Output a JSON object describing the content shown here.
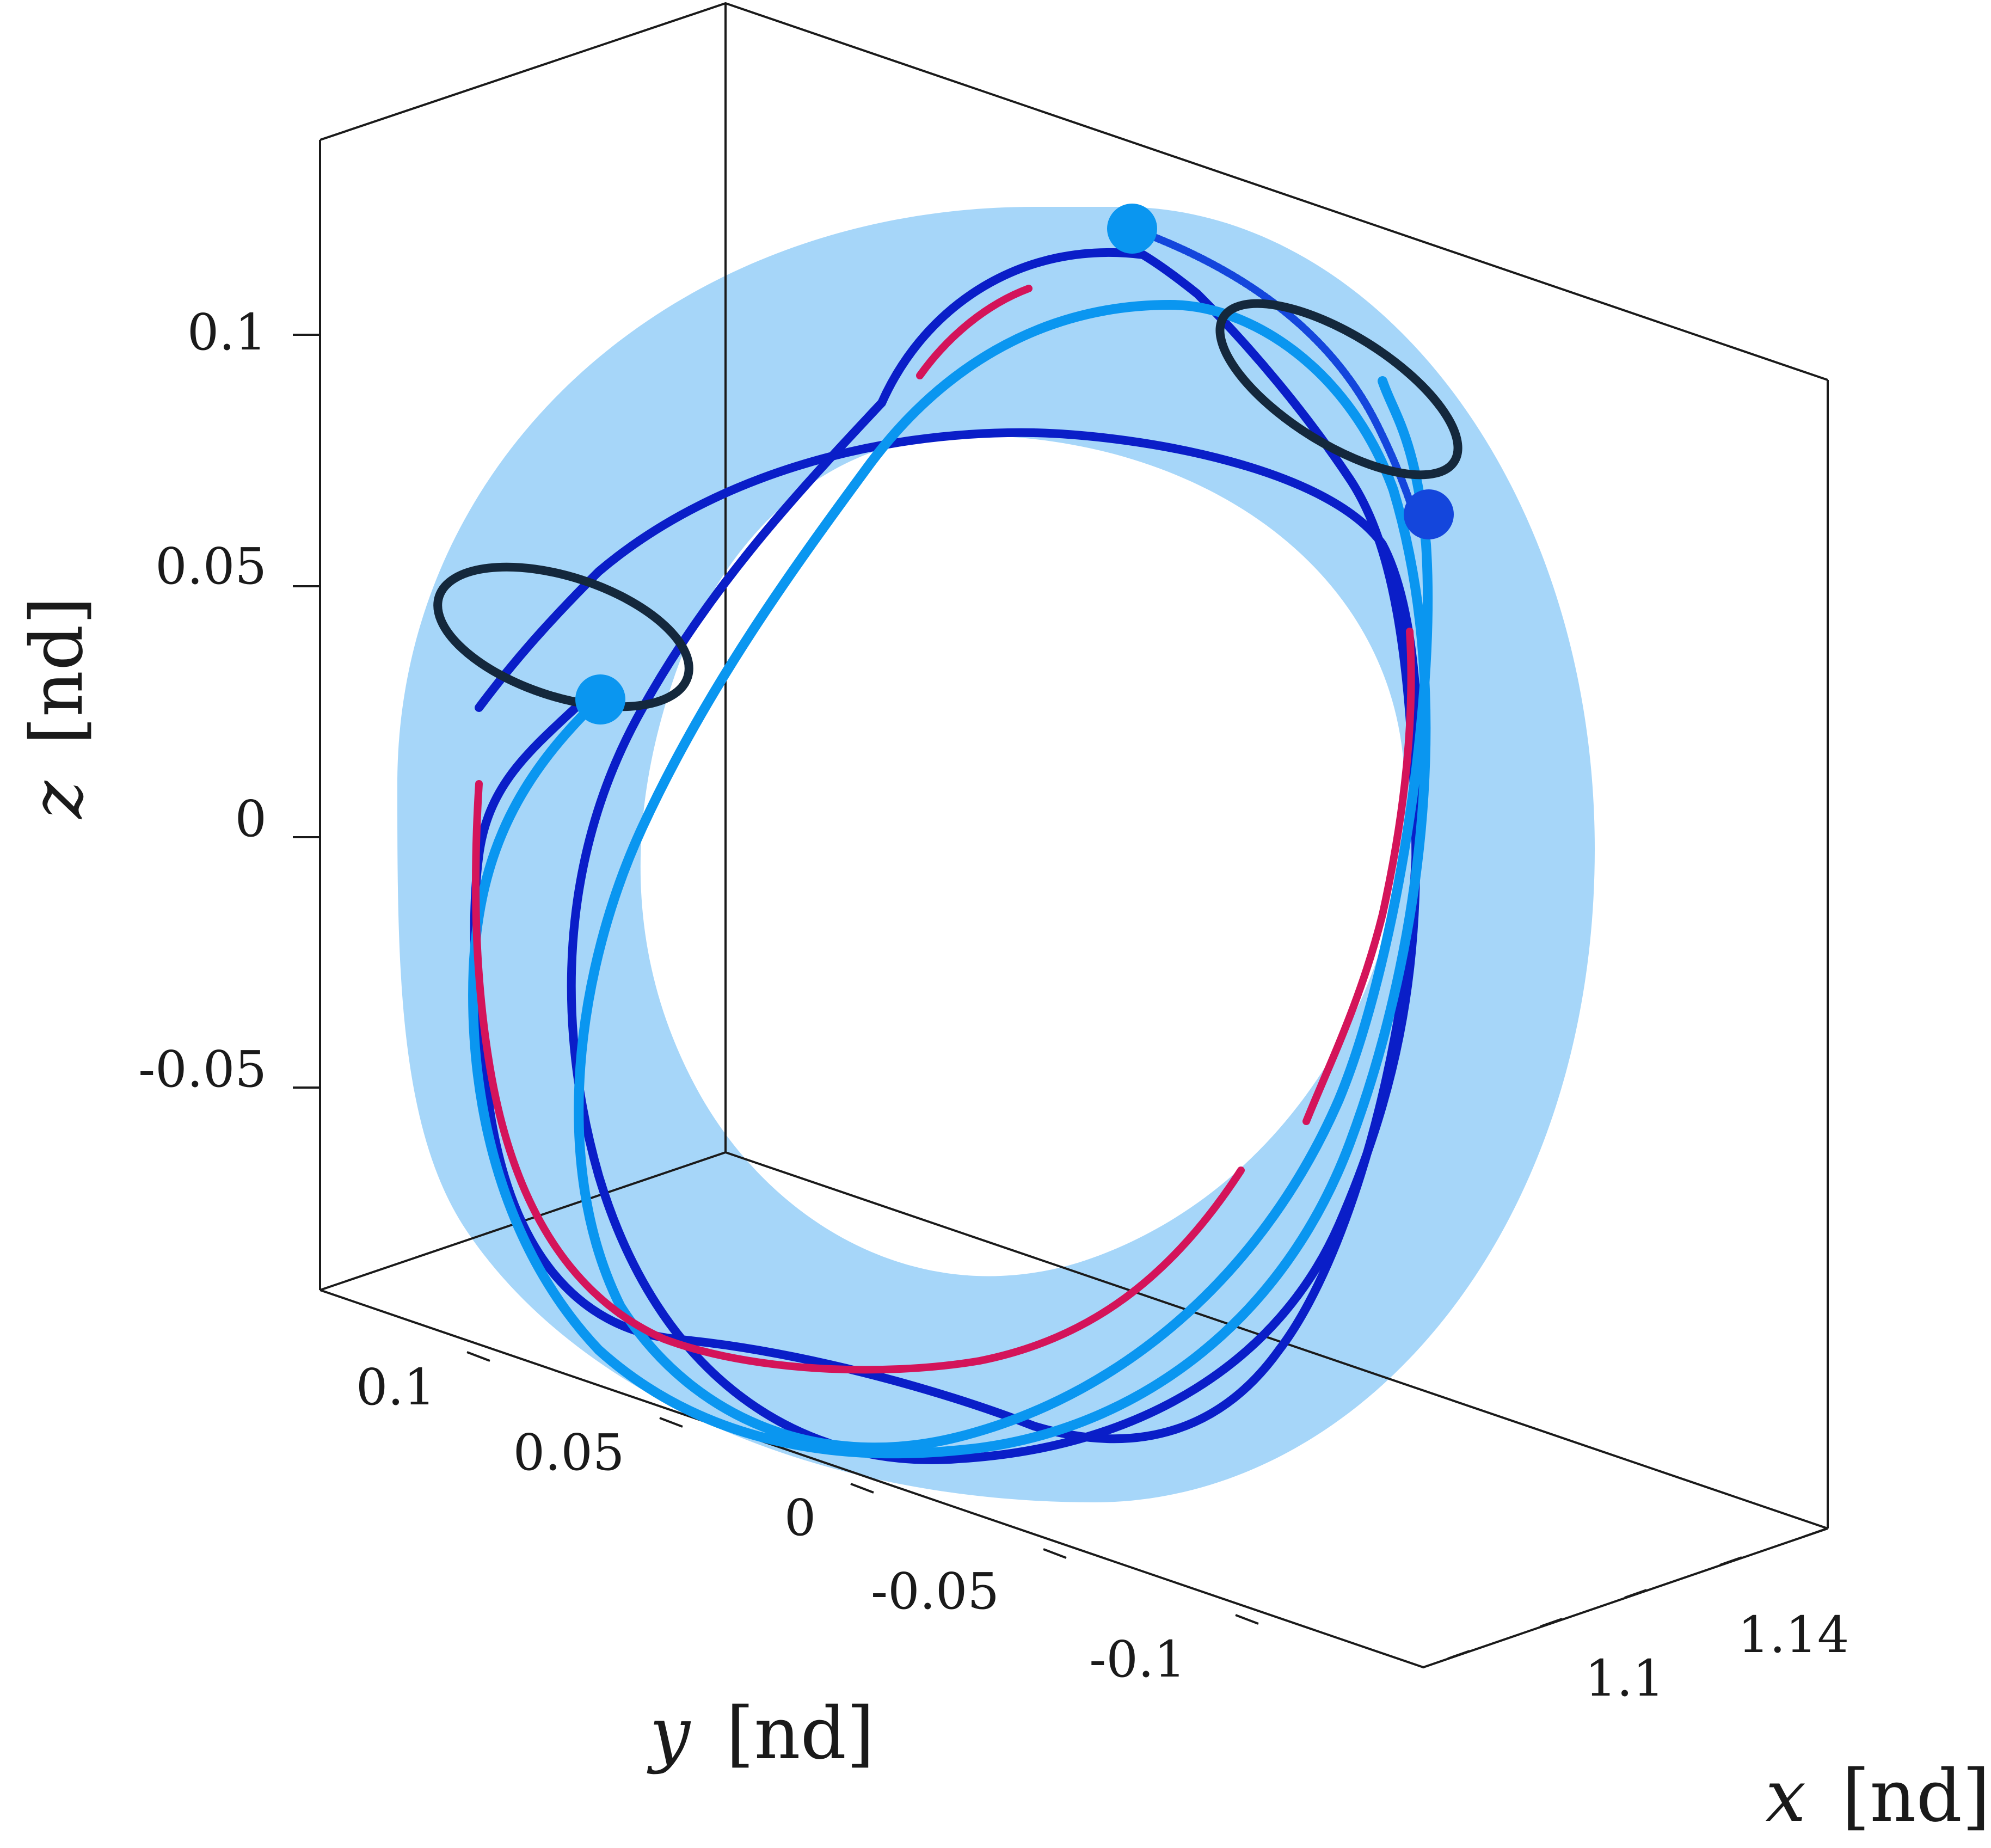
{
  "chart_data": {
    "type": "line",
    "title": "",
    "projection": "3d",
    "axes": {
      "x": {
        "label": "x",
        "unit": "[nd]",
        "ticks": [
          "1.1",
          "1.14"
        ]
      },
      "y": {
        "label": "y",
        "unit": "[nd]",
        "ticks": [
          "0.1",
          "0.05",
          "0",
          "-0.05",
          "-0.1"
        ]
      },
      "z": {
        "label": "z",
        "unit": "[nd]",
        "ticks": [
          "0.1",
          "0.05",
          "0",
          "-0.05"
        ]
      }
    },
    "grid": false,
    "legend": "none",
    "colors": {
      "surface": "#a6d6f9",
      "trajectory_dark_blue": "#0a1ec8",
      "trajectory_light_blue": "#0a96f0",
      "segment_red": "#d4145a",
      "orbit_black": "#14283c",
      "start_marker": "#0a96f0",
      "end_marker": "#1446dc"
    },
    "series": [
      {
        "style": "dark-blue",
        "points": [
          [
            1.12,
            0.02,
            0.1
          ],
          [
            1.12,
            -0.04,
            0.105
          ],
          [
            1.12,
            -0.08,
            0.065
          ],
          [
            1.12,
            -0.095,
            -0.01
          ],
          [
            1.12,
            -0.075,
            -0.07
          ],
          [
            1.12,
            -0.02,
            -0.105
          ],
          [
            1.12,
            0.03,
            -0.12
          ],
          [
            1.12,
            0.07,
            -0.095
          ],
          [
            1.12,
            0.085,
            -0.02
          ],
          [
            1.12,
            0.08,
            0.03
          ],
          [
            1.12,
            0.05,
            0.07
          ],
          [
            1.12,
            0.0,
            0.085
          ],
          [
            1.12,
            -0.04,
            0.09
          ],
          [
            1.12,
            -0.085,
            0.063
          ]
        ]
      },
      {
        "style": "light-blue",
        "points": [
          [
            1.12,
            0.028,
            0.027
          ],
          [
            1.12,
            0.06,
            -0.01
          ],
          [
            1.12,
            0.07,
            -0.07
          ],
          [
            1.12,
            0.04,
            -0.11
          ],
          [
            1.12,
            -0.01,
            -0.125
          ],
          [
            1.12,
            -0.06,
            -0.09
          ],
          [
            1.12,
            -0.09,
            -0.02
          ],
          [
            1.12,
            -0.095,
            0.05
          ],
          [
            1.12,
            -0.06,
            0.088
          ],
          [
            1.12,
            -0.02,
            0.095
          ],
          [
            1.12,
            0.02,
            0.08
          ],
          [
            1.12,
            0.045,
            0.05
          ],
          [
            1.12,
            0.04,
            0.0
          ],
          [
            1.12,
            0.02,
            -0.06
          ],
          [
            1.12,
            -0.03,
            -0.1
          ],
          [
            1.12,
            -0.07,
            -0.07
          ],
          [
            1.12,
            -0.09,
            0.01
          ],
          [
            1.12,
            -0.085,
            0.06
          ]
        ]
      },
      {
        "style": "red-segments",
        "points": [
          [
            1.12,
            0.075,
            -0.01
          ],
          [
            1.12,
            0.075,
            -0.05
          ],
          [
            1.12,
            0.06,
            -0.09
          ],
          [
            1.12,
            0.02,
            -0.11
          ],
          [
            1.12,
            -0.03,
            -0.1
          ],
          [
            1.12,
            -0.065,
            -0.06
          ],
          [
            1.12,
            -0.085,
            0.0
          ],
          [
            1.12,
            -0.085,
            0.03
          ]
        ]
      },
      {
        "style": "black-orbit",
        "center": [
          1.12,
          0.075,
          0.05
        ],
        "radius": 0.02
      },
      {
        "style": "black-orbit",
        "center": [
          1.12,
          -0.085,
          0.095
        ],
        "radius": 0.02
      }
    ],
    "markers": [
      {
        "style": "start",
        "point": [
          1.12,
          0.028,
          0.027
        ]
      },
      {
        "style": "start",
        "point": [
          1.12,
          -0.02,
          0.12
        ]
      },
      {
        "style": "end",
        "point": [
          1.12,
          -0.09,
          0.065
        ]
      }
    ],
    "surface": {
      "type": "torus",
      "shown": true
    }
  }
}
